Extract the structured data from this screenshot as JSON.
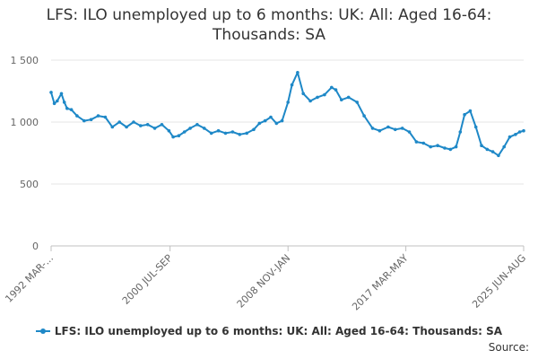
{
  "title_line1": "LFS: ILO unemployed up to 6 months: UK: All: Aged 16-64:",
  "title_line2": "Thousands: SA",
  "source_label": "Source:",
  "chart_data": {
    "type": "line",
    "title": "LFS: ILO unemployed up to 6 months: UK: All: Aged 16-64: Thousands: SA",
    "xlabel": "",
    "ylabel": "",
    "ylim": [
      0,
      1500
    ],
    "yticks": [
      0,
      500,
      1000,
      1500
    ],
    "ytick_labels": [
      "0",
      "500",
      "1 000",
      "1 500"
    ],
    "x_tick_labels": [
      "1992 MAR-...",
      "2000 JUL-SEP",
      "2008 NOV-JAN",
      "2017 MAR-MAY",
      "2025 JUN-AUG"
    ],
    "x_tick_years": [
      1992.17,
      2000.58,
      2008.92,
      2017.25,
      2025.58
    ],
    "x_range": [
      1992.17,
      2025.58
    ],
    "grid": "horizontal",
    "legend_position": "bottom",
    "series": [
      {
        "name": "LFS: ILO unemployed up to 6 months: UK: All: Aged 16-64: Thousands: SA",
        "color": "#1e88c7",
        "x": [
          1992.17,
          1992.4,
          1992.6,
          1992.9,
          1993.1,
          1993.3,
          1993.6,
          1994.0,
          1994.5,
          1995.0,
          1995.5,
          1996.0,
          1996.5,
          1997.0,
          1997.5,
          1998.0,
          1998.5,
          1999.0,
          1999.5,
          2000.0,
          2000.5,
          2000.8,
          2001.2,
          2001.6,
          2002.0,
          2002.5,
          2003.0,
          2003.5,
          2004.0,
          2004.5,
          2005.0,
          2005.5,
          2006.0,
          2006.5,
          2006.9,
          2007.3,
          2007.7,
          2008.1,
          2008.5,
          2008.92,
          2009.2,
          2009.6,
          2010.0,
          2010.5,
          2011.0,
          2011.5,
          2012.0,
          2012.3,
          2012.7,
          2013.2,
          2013.8,
          2014.3,
          2014.9,
          2015.4,
          2016.0,
          2016.5,
          2017.0,
          2017.5,
          2018.0,
          2018.5,
          2019.0,
          2019.5,
          2020.0,
          2020.4,
          2020.8,
          2021.1,
          2021.4,
          2021.8,
          2022.2,
          2022.6,
          2023.0,
          2023.4,
          2023.8,
          2024.2,
          2024.6,
          2025.0,
          2025.3,
          2025.58
        ],
        "y": [
          1240,
          1150,
          1170,
          1230,
          1160,
          1110,
          1100,
          1050,
          1010,
          1020,
          1050,
          1040,
          960,
          1000,
          960,
          1000,
          970,
          980,
          950,
          980,
          930,
          880,
          890,
          920,
          950,
          980,
          950,
          910,
          930,
          910,
          920,
          900,
          910,
          940,
          990,
          1010,
          1040,
          990,
          1010,
          1160,
          1300,
          1400,
          1230,
          1170,
          1200,
          1220,
          1280,
          1260,
          1180,
          1200,
          1160,
          1050,
          950,
          930,
          960,
          940,
          950,
          920,
          840,
          830,
          800,
          810,
          790,
          780,
          800,
          920,
          1060,
          1090,
          960,
          810,
          780,
          760,
          730,
          800,
          880,
          900,
          920,
          930
        ]
      }
    ]
  }
}
